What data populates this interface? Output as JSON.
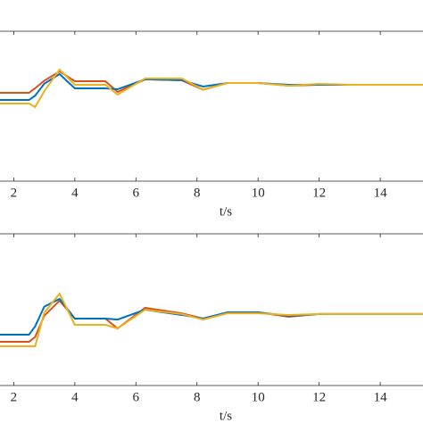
{
  "chart_data": [
    {
      "type": "line",
      "xlabel": "t/s",
      "x": [
        1.55,
        2.5,
        2.7,
        3.0,
        3.5,
        4.0,
        5.0,
        5.4,
        6.3,
        7.5,
        8.2,
        9.0,
        10.0,
        11.0,
        12.0,
        13.0,
        15.4
      ],
      "series": [
        {
          "color": "#D95319",
          "values": [
            5.89,
            5.89,
            6.2,
            6.7,
            7.32,
            6.67,
            6.67,
            5.95,
            6.79,
            6.73,
            6.1,
            6.55,
            6.55,
            6.37,
            6.43,
            6.43,
            6.43
          ]
        },
        {
          "color": "#0072BD",
          "values": [
            5.42,
            5.42,
            5.7,
            6.5,
            7.14,
            6.19,
            6.19,
            6.13,
            6.79,
            6.73,
            6.31,
            6.55,
            6.55,
            6.43,
            6.43,
            6.43,
            6.43
          ]
        },
        {
          "color": "#EDB120",
          "values": [
            5.18,
            5.18,
            4.94,
            6.0,
            7.44,
            6.43,
            6.43,
            5.77,
            6.85,
            6.85,
            6.1,
            6.55,
            6.55,
            6.37,
            6.49,
            6.43,
            6.43
          ]
        }
      ],
      "xlim": [
        1.55,
        15.4
      ],
      "ylim": [
        0,
        10
      ],
      "xticks": [
        2,
        4,
        6,
        8,
        10,
        12,
        14
      ]
    },
    {
      "type": "line",
      "xlabel": "t/s",
      "x": [
        1.55,
        2.5,
        2.7,
        3.0,
        3.5,
        4.0,
        5.0,
        5.4,
        6.3,
        7.5,
        8.2,
        9.0,
        10.0,
        11.0,
        12.0,
        13.0,
        15.4
      ],
      "series": [
        {
          "color": "#D95319",
          "values": [
            2.88,
            2.88,
            3.2,
            4.6,
            5.59,
            4.41,
            4.41,
            3.76,
            5.12,
            4.76,
            4.41,
            4.82,
            4.82,
            4.53,
            4.71,
            4.71,
            4.71
          ]
        },
        {
          "color": "#0072BD",
          "values": [
            3.35,
            3.35,
            3.9,
            5.2,
            5.71,
            4.41,
            4.41,
            4.35,
            5.0,
            4.65,
            4.41,
            4.82,
            4.82,
            4.59,
            4.71,
            4.71,
            4.71
          ]
        },
        {
          "color": "#EDB120",
          "values": [
            2.59,
            2.59,
            2.59,
            4.8,
            6.06,
            4.0,
            4.0,
            3.76,
            5.0,
            4.71,
            4.35,
            4.76,
            4.76,
            4.65,
            4.71,
            4.71,
            4.71
          ]
        }
      ],
      "xlim": [
        1.55,
        15.4
      ],
      "ylim": [
        0,
        10
      ],
      "xticks": [
        2,
        4,
        6,
        8,
        10,
        12,
        14
      ]
    }
  ]
}
